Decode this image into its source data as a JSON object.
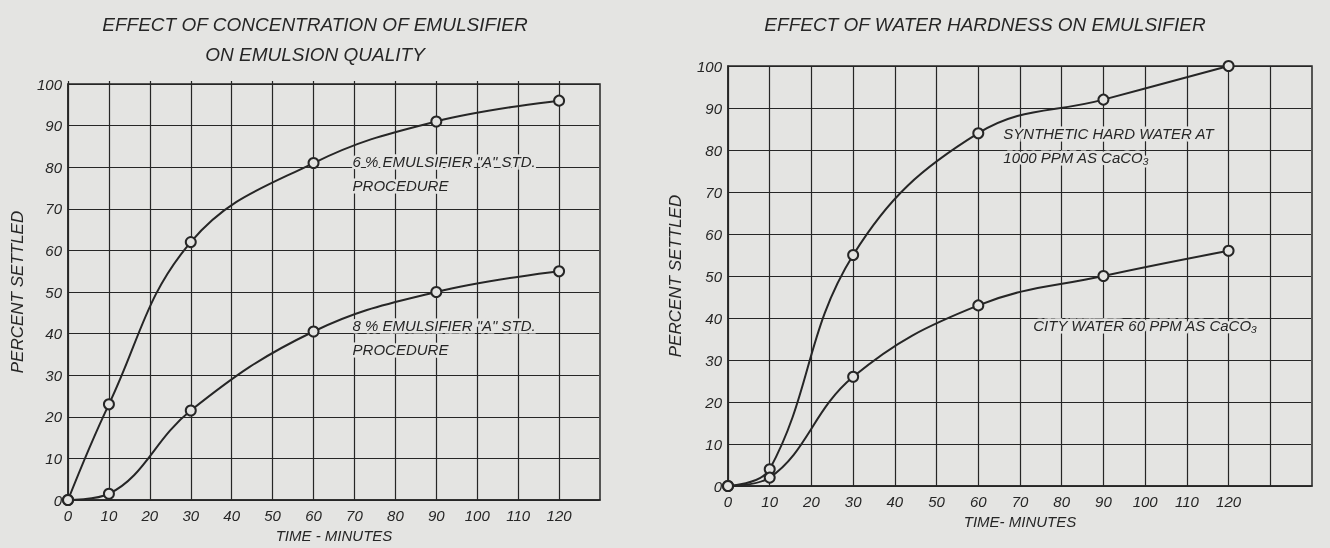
{
  "chart_data": [
    {
      "type": "line",
      "title": "EFFECT OF CONCENTRATION OF EMULSIFIER\nON EMULSION QUALITY",
      "xlabel": "TIME - MINUTES",
      "ylabel": "PERCENT SETTLED",
      "x": [
        0,
        10,
        30,
        60,
        90,
        120
      ],
      "series": [
        {
          "name": "6 % EMULSIFIER \"A\" STD. PROCEDURE",
          "color": "#262626",
          "values": [
            0,
            23,
            62,
            81,
            91,
            96
          ]
        },
        {
          "name": "8 % EMULSIFIER \"A\" STD. PROCEDURE",
          "color": "#262626",
          "values": [
            0,
            1.5,
            21.5,
            40.5,
            50,
            55
          ]
        }
      ],
      "xlim": [
        0,
        130
      ],
      "xticks": [
        0,
        10,
        20,
        30,
        40,
        50,
        60,
        70,
        80,
        90,
        100,
        110,
        120
      ],
      "ylim": [
        0,
        100
      ],
      "yticks": [
        0,
        10,
        20,
        30,
        40,
        50,
        60,
        70,
        80,
        90,
        100
      ],
      "grid": true,
      "legend": false,
      "marker": "circle",
      "line_style": "solid"
    },
    {
      "type": "line",
      "title": "EFFECT OF WATER HARDNESS ON EMULSIFIER",
      "xlabel": "TIME- MINUTES",
      "ylabel": "PERCENT SETTLED",
      "x": [
        0,
        10,
        30,
        60,
        90,
        120
      ],
      "series": [
        {
          "name": "SYNTHETIC HARD WATER AT 1000 PPM AS CaCO₃",
          "color": "#262626",
          "values": [
            0,
            4,
            55,
            84,
            92,
            100
          ]
        },
        {
          "name": "CITY WATER 60 PPM AS CaCO₃",
          "color": "#262626",
          "values": [
            0,
            2,
            26,
            43,
            50,
            56
          ]
        }
      ],
      "xlim": [
        0,
        140
      ],
      "xticks": [
        0,
        10,
        20,
        30,
        40,
        50,
        60,
        70,
        80,
        90,
        100,
        110,
        120,
        {
          "value": 130,
          "label": null
        }
      ],
      "ylim": [
        0,
        100
      ],
      "yticks": [
        0,
        10,
        20,
        30,
        40,
        50,
        60,
        70,
        80,
        90,
        100
      ],
      "grid": true,
      "legend": false,
      "marker": "circle",
      "line_style": "solid"
    }
  ]
}
